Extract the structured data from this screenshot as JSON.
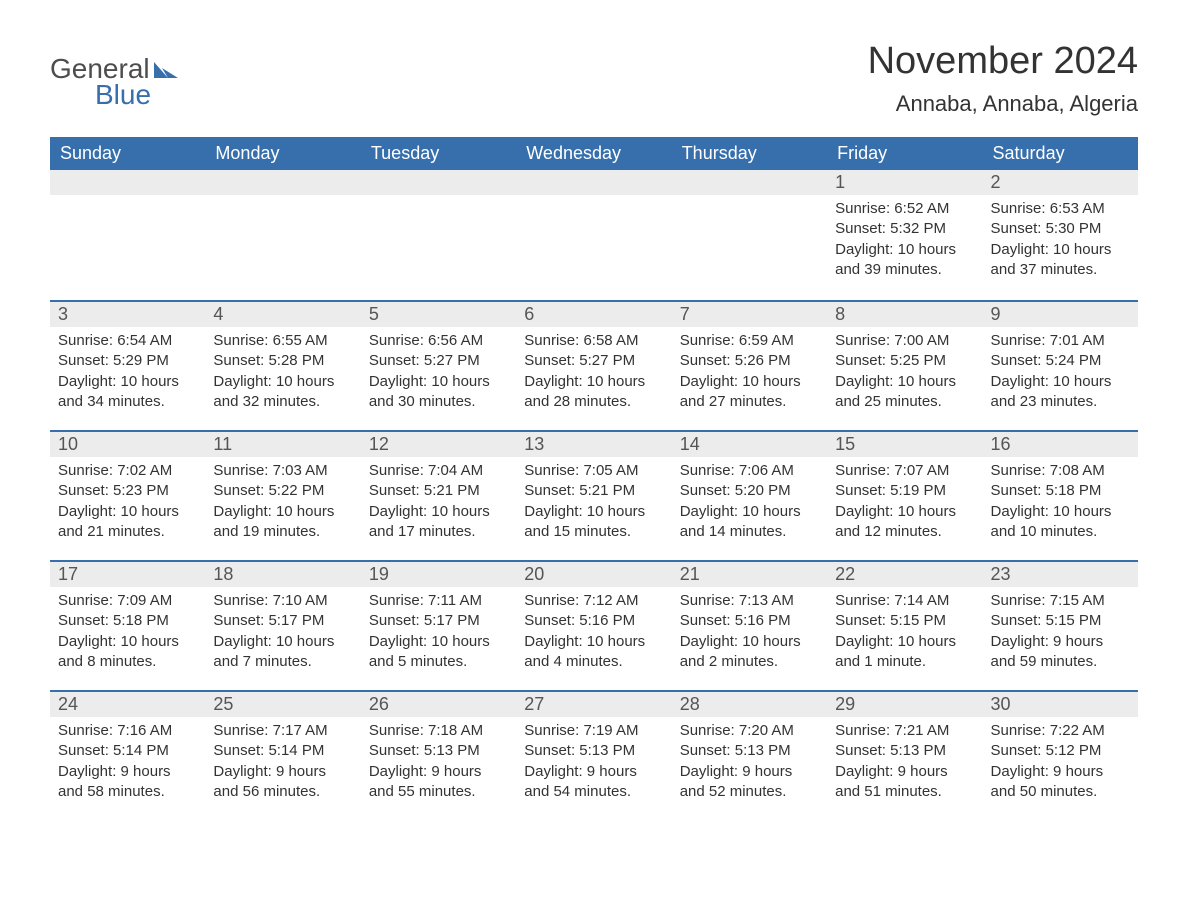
{
  "logo": {
    "text1": "General",
    "text2": "Blue",
    "icon_color": "#376fac"
  },
  "title": "November 2024",
  "location": "Annaba, Annaba, Algeria",
  "colors": {
    "header_bg": "#376fac",
    "header_fg": "#ffffff",
    "daybar_bg": "#ececec",
    "daybar_border": "#376fac",
    "text": "#333333",
    "background": "#ffffff"
  },
  "day_headers": [
    "Sunday",
    "Monday",
    "Tuesday",
    "Wednesday",
    "Thursday",
    "Friday",
    "Saturday"
  ],
  "weeks": [
    [
      null,
      null,
      null,
      null,
      null,
      {
        "n": "1",
        "sunrise": "Sunrise: 6:52 AM",
        "sunset": "Sunset: 5:32 PM",
        "daylight": "Daylight: 10 hours and 39 minutes."
      },
      {
        "n": "2",
        "sunrise": "Sunrise: 6:53 AM",
        "sunset": "Sunset: 5:30 PM",
        "daylight": "Daylight: 10 hours and 37 minutes."
      }
    ],
    [
      {
        "n": "3",
        "sunrise": "Sunrise: 6:54 AM",
        "sunset": "Sunset: 5:29 PM",
        "daylight": "Daylight: 10 hours and 34 minutes."
      },
      {
        "n": "4",
        "sunrise": "Sunrise: 6:55 AM",
        "sunset": "Sunset: 5:28 PM",
        "daylight": "Daylight: 10 hours and 32 minutes."
      },
      {
        "n": "5",
        "sunrise": "Sunrise: 6:56 AM",
        "sunset": "Sunset: 5:27 PM",
        "daylight": "Daylight: 10 hours and 30 minutes."
      },
      {
        "n": "6",
        "sunrise": "Sunrise: 6:58 AM",
        "sunset": "Sunset: 5:27 PM",
        "daylight": "Daylight: 10 hours and 28 minutes."
      },
      {
        "n": "7",
        "sunrise": "Sunrise: 6:59 AM",
        "sunset": "Sunset: 5:26 PM",
        "daylight": "Daylight: 10 hours and 27 minutes."
      },
      {
        "n": "8",
        "sunrise": "Sunrise: 7:00 AM",
        "sunset": "Sunset: 5:25 PM",
        "daylight": "Daylight: 10 hours and 25 minutes."
      },
      {
        "n": "9",
        "sunrise": "Sunrise: 7:01 AM",
        "sunset": "Sunset: 5:24 PM",
        "daylight": "Daylight: 10 hours and 23 minutes."
      }
    ],
    [
      {
        "n": "10",
        "sunrise": "Sunrise: 7:02 AM",
        "sunset": "Sunset: 5:23 PM",
        "daylight": "Daylight: 10 hours and 21 minutes."
      },
      {
        "n": "11",
        "sunrise": "Sunrise: 7:03 AM",
        "sunset": "Sunset: 5:22 PM",
        "daylight": "Daylight: 10 hours and 19 minutes."
      },
      {
        "n": "12",
        "sunrise": "Sunrise: 7:04 AM",
        "sunset": "Sunset: 5:21 PM",
        "daylight": "Daylight: 10 hours and 17 minutes."
      },
      {
        "n": "13",
        "sunrise": "Sunrise: 7:05 AM",
        "sunset": "Sunset: 5:21 PM",
        "daylight": "Daylight: 10 hours and 15 minutes."
      },
      {
        "n": "14",
        "sunrise": "Sunrise: 7:06 AM",
        "sunset": "Sunset: 5:20 PM",
        "daylight": "Daylight: 10 hours and 14 minutes."
      },
      {
        "n": "15",
        "sunrise": "Sunrise: 7:07 AM",
        "sunset": "Sunset: 5:19 PM",
        "daylight": "Daylight: 10 hours and 12 minutes."
      },
      {
        "n": "16",
        "sunrise": "Sunrise: 7:08 AM",
        "sunset": "Sunset: 5:18 PM",
        "daylight": "Daylight: 10 hours and 10 minutes."
      }
    ],
    [
      {
        "n": "17",
        "sunrise": "Sunrise: 7:09 AM",
        "sunset": "Sunset: 5:18 PM",
        "daylight": "Daylight: 10 hours and 8 minutes."
      },
      {
        "n": "18",
        "sunrise": "Sunrise: 7:10 AM",
        "sunset": "Sunset: 5:17 PM",
        "daylight": "Daylight: 10 hours and 7 minutes."
      },
      {
        "n": "19",
        "sunrise": "Sunrise: 7:11 AM",
        "sunset": "Sunset: 5:17 PM",
        "daylight": "Daylight: 10 hours and 5 minutes."
      },
      {
        "n": "20",
        "sunrise": "Sunrise: 7:12 AM",
        "sunset": "Sunset: 5:16 PM",
        "daylight": "Daylight: 10 hours and 4 minutes."
      },
      {
        "n": "21",
        "sunrise": "Sunrise: 7:13 AM",
        "sunset": "Sunset: 5:16 PM",
        "daylight": "Daylight: 10 hours and 2 minutes."
      },
      {
        "n": "22",
        "sunrise": "Sunrise: 7:14 AM",
        "sunset": "Sunset: 5:15 PM",
        "daylight": "Daylight: 10 hours and 1 minute."
      },
      {
        "n": "23",
        "sunrise": "Sunrise: 7:15 AM",
        "sunset": "Sunset: 5:15 PM",
        "daylight": "Daylight: 9 hours and 59 minutes."
      }
    ],
    [
      {
        "n": "24",
        "sunrise": "Sunrise: 7:16 AM",
        "sunset": "Sunset: 5:14 PM",
        "daylight": "Daylight: 9 hours and 58 minutes."
      },
      {
        "n": "25",
        "sunrise": "Sunrise: 7:17 AM",
        "sunset": "Sunset: 5:14 PM",
        "daylight": "Daylight: 9 hours and 56 minutes."
      },
      {
        "n": "26",
        "sunrise": "Sunrise: 7:18 AM",
        "sunset": "Sunset: 5:13 PM",
        "daylight": "Daylight: 9 hours and 55 minutes."
      },
      {
        "n": "27",
        "sunrise": "Sunrise: 7:19 AM",
        "sunset": "Sunset: 5:13 PM",
        "daylight": "Daylight: 9 hours and 54 minutes."
      },
      {
        "n": "28",
        "sunrise": "Sunrise: 7:20 AM",
        "sunset": "Sunset: 5:13 PM",
        "daylight": "Daylight: 9 hours and 52 minutes."
      },
      {
        "n": "29",
        "sunrise": "Sunrise: 7:21 AM",
        "sunset": "Sunset: 5:13 PM",
        "daylight": "Daylight: 9 hours and 51 minutes."
      },
      {
        "n": "30",
        "sunrise": "Sunrise: 7:22 AM",
        "sunset": "Sunset: 5:12 PM",
        "daylight": "Daylight: 9 hours and 50 minutes."
      }
    ]
  ]
}
